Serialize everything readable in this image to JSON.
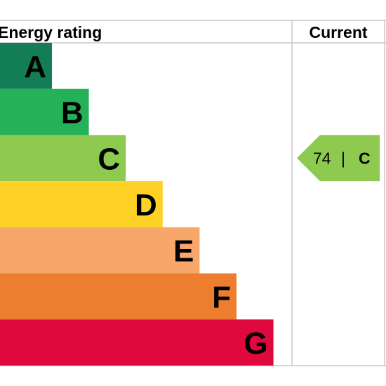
{
  "header": {
    "rating_label": "Energy rating",
    "current_label": "Current"
  },
  "chart_data": {
    "type": "bar",
    "title": "",
    "categories": [
      "A",
      "B",
      "C",
      "D",
      "E",
      "F",
      "G"
    ],
    "colors": [
      "#137e55",
      "#25b158",
      "#8dca4f",
      "#fdd125",
      "#f8a76b",
      "#ed7e2f",
      "#e0093d"
    ],
    "current": {
      "score": 74,
      "band": "C",
      "separator": "|",
      "color": "#8dca4f"
    }
  }
}
